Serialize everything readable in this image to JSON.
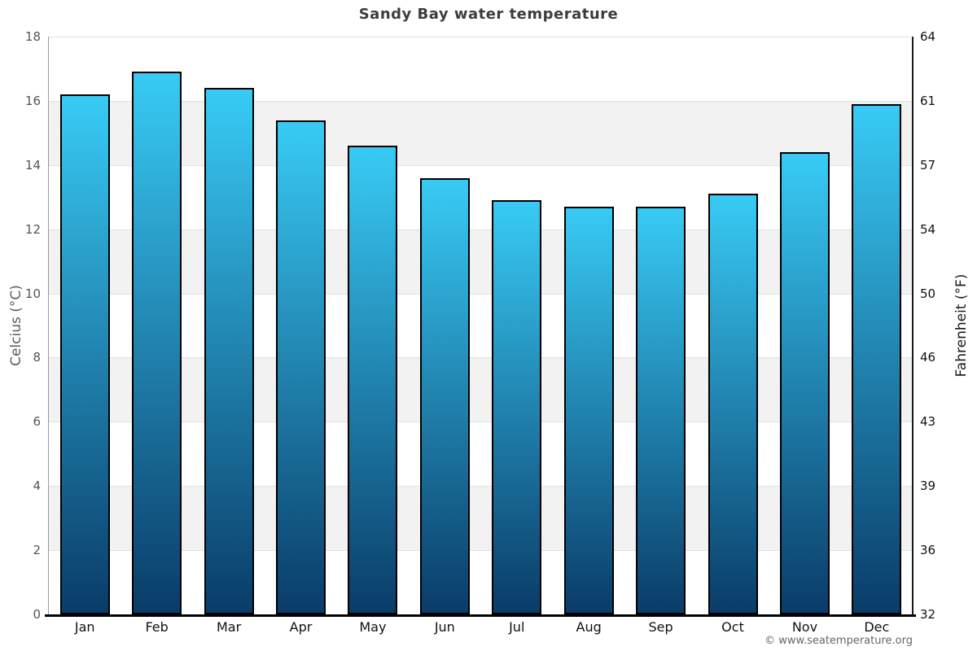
{
  "header": {
    "title": "Sandy Bay water temperature"
  },
  "footer": {
    "copyright": "© www.seatemperature.org"
  },
  "chart_data": {
    "type": "bar",
    "title": "Sandy Bay water temperature",
    "categories": [
      "Jan",
      "Feb",
      "Mar",
      "Apr",
      "May",
      "Jun",
      "Jul",
      "Aug",
      "Sep",
      "Oct",
      "Nov",
      "Dec"
    ],
    "values": [
      16.2,
      16.9,
      16.4,
      15.4,
      14.6,
      13.6,
      12.9,
      12.7,
      12.7,
      13.1,
      14.4,
      15.9
    ],
    "unit": "°C",
    "ylabel_left": "Celcius (°C)",
    "ylabel_right": "Fahrenheit (°F)",
    "ylim": [
      0,
      18
    ],
    "yticks_celsius": [
      0,
      2,
      4,
      6,
      8,
      10,
      12,
      14,
      16,
      18
    ],
    "yticks_fahrenheit": [
      32,
      36,
      39,
      43,
      46,
      50,
      54,
      57,
      61,
      64
    ],
    "legend": "none",
    "grid": "alternating-horizontal-bands",
    "colors": {
      "bar_gradient_top": "#38cbf5",
      "bar_gradient_bottom": "#0a3c69",
      "bar_border": "#000000",
      "band_gray": "#f2f2f2",
      "band_white": "#ffffff",
      "grid_line": "#e2e2e2",
      "axis_left": "#9a9a9a",
      "axis_right": "#1a1a1a",
      "axis_bottom": "#000000",
      "tick_label_left": "#555555",
      "tick_label_right": "#111111",
      "month_label": "#111111",
      "title": "#3c3c3c",
      "axis_title_left": "#5a5a5a",
      "axis_title_right": "#1a1a1a",
      "copyright": "#666666"
    }
  }
}
